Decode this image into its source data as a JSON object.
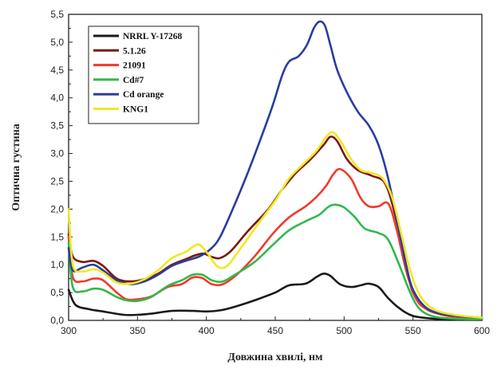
{
  "chart_data": {
    "type": "line",
    "xlabel": "Довжина хвилі, нм",
    "ylabel": "Оптична густина",
    "xlim": [
      300,
      600
    ],
    "ylim": [
      0,
      5.5
    ],
    "x_ticks": [
      300,
      350,
      400,
      450,
      500,
      550,
      600
    ],
    "y_ticks": [
      0,
      0.5,
      1,
      1.5,
      2,
      2.5,
      3,
      3.5,
      4,
      4.5,
      5,
      5.5
    ],
    "x_tick_labels": [
      "300",
      "350",
      "400",
      "450",
      "500",
      "550",
      "600"
    ],
    "y_tick_labels": [
      "0,0",
      "0,5",
      "1,0",
      "1,5",
      "2,0",
      "2,5",
      "3,0",
      "3,5",
      "4,0",
      "4,5",
      "5,0",
      "5,5"
    ],
    "legend_position": "top-left",
    "series": [
      {
        "name": "NRRL Y-17268",
        "color": "#1a1a1a",
        "points": [
          [
            300,
            0.55
          ],
          [
            305,
            0.28
          ],
          [
            315,
            0.2
          ],
          [
            325,
            0.16
          ],
          [
            340,
            0.1
          ],
          [
            350,
            0.1
          ],
          [
            360,
            0.12
          ],
          [
            375,
            0.17
          ],
          [
            390,
            0.17
          ],
          [
            400,
            0.16
          ],
          [
            410,
            0.18
          ],
          [
            420,
            0.24
          ],
          [
            435,
            0.36
          ],
          [
            450,
            0.5
          ],
          [
            460,
            0.63
          ],
          [
            472,
            0.66
          ],
          [
            480,
            0.78
          ],
          [
            485,
            0.84
          ],
          [
            490,
            0.8
          ],
          [
            497,
            0.65
          ],
          [
            505,
            0.6
          ],
          [
            512,
            0.63
          ],
          [
            518,
            0.66
          ],
          [
            525,
            0.6
          ],
          [
            532,
            0.4
          ],
          [
            540,
            0.22
          ],
          [
            550,
            0.08
          ],
          [
            565,
            0.03
          ],
          [
            580,
            0.02
          ],
          [
            600,
            0.01
          ]
        ]
      },
      {
        "name": "5.1.26",
        "color": "#7a1a10",
        "points": [
          [
            300,
            1.55
          ],
          [
            303,
            1.15
          ],
          [
            310,
            1.05
          ],
          [
            318,
            1.07
          ],
          [
            325,
            0.98
          ],
          [
            335,
            0.75
          ],
          [
            345,
            0.7
          ],
          [
            355,
            0.74
          ],
          [
            365,
            0.84
          ],
          [
            375,
            1.0
          ],
          [
            385,
            1.1
          ],
          [
            392,
            1.17
          ],
          [
            398,
            1.2
          ],
          [
            404,
            1.14
          ],
          [
            410,
            1.12
          ],
          [
            418,
            1.25
          ],
          [
            430,
            1.6
          ],
          [
            445,
            2.0
          ],
          [
            455,
            2.35
          ],
          [
            465,
            2.65
          ],
          [
            475,
            2.88
          ],
          [
            485,
            3.15
          ],
          [
            490,
            3.3
          ],
          [
            495,
            3.22
          ],
          [
            502,
            2.9
          ],
          [
            510,
            2.7
          ],
          [
            520,
            2.6
          ],
          [
            530,
            2.45
          ],
          [
            538,
            1.8
          ],
          [
            545,
            1.0
          ],
          [
            550,
            0.5
          ],
          [
            560,
            0.2
          ],
          [
            575,
            0.1
          ],
          [
            600,
            0.04
          ]
        ]
      },
      {
        "name": "21091",
        "color": "#ee3b2c",
        "points": [
          [
            300,
            1.5
          ],
          [
            303,
            0.78
          ],
          [
            310,
            0.7
          ],
          [
            318,
            0.75
          ],
          [
            325,
            0.72
          ],
          [
            335,
            0.5
          ],
          [
            342,
            0.38
          ],
          [
            350,
            0.38
          ],
          [
            360,
            0.43
          ],
          [
            372,
            0.6
          ],
          [
            382,
            0.65
          ],
          [
            390,
            0.77
          ],
          [
            397,
            0.76
          ],
          [
            404,
            0.65
          ],
          [
            412,
            0.65
          ],
          [
            422,
            0.82
          ],
          [
            435,
            1.15
          ],
          [
            448,
            1.55
          ],
          [
            460,
            1.85
          ],
          [
            472,
            2.05
          ],
          [
            480,
            2.22
          ],
          [
            487,
            2.42
          ],
          [
            492,
            2.62
          ],
          [
            497,
            2.72
          ],
          [
            505,
            2.55
          ],
          [
            512,
            2.2
          ],
          [
            518,
            2.05
          ],
          [
            525,
            2.05
          ],
          [
            532,
            2.1
          ],
          [
            538,
            1.65
          ],
          [
            545,
            0.9
          ],
          [
            552,
            0.4
          ],
          [
            560,
            0.2
          ],
          [
            575,
            0.08
          ],
          [
            600,
            0.03
          ]
        ]
      },
      {
        "name": "Cd#7",
        "color": "#32b84a",
        "points": [
          [
            300,
            1.4
          ],
          [
            303,
            0.6
          ],
          [
            310,
            0.52
          ],
          [
            318,
            0.57
          ],
          [
            325,
            0.55
          ],
          [
            335,
            0.42
          ],
          [
            342,
            0.36
          ],
          [
            350,
            0.35
          ],
          [
            360,
            0.42
          ],
          [
            372,
            0.62
          ],
          [
            382,
            0.72
          ],
          [
            390,
            0.82
          ],
          [
            397,
            0.82
          ],
          [
            404,
            0.72
          ],
          [
            412,
            0.7
          ],
          [
            422,
            0.84
          ],
          [
            435,
            1.05
          ],
          [
            448,
            1.35
          ],
          [
            460,
            1.62
          ],
          [
            472,
            1.78
          ],
          [
            482,
            1.9
          ],
          [
            488,
            2.03
          ],
          [
            493,
            2.08
          ],
          [
            500,
            2.03
          ],
          [
            508,
            1.85
          ],
          [
            515,
            1.65
          ],
          [
            525,
            1.57
          ],
          [
            532,
            1.45
          ],
          [
            540,
            1.0
          ],
          [
            548,
            0.5
          ],
          [
            555,
            0.2
          ],
          [
            565,
            0.07
          ],
          [
            580,
            0.03
          ],
          [
            600,
            0.02
          ]
        ]
      },
      {
        "name": "Cd orange",
        "color": "#2a3d9e",
        "points": [
          [
            300,
            1.3
          ],
          [
            303,
            0.9
          ],
          [
            310,
            0.95
          ],
          [
            318,
            1.0
          ],
          [
            325,
            0.9
          ],
          [
            335,
            0.72
          ],
          [
            345,
            0.65
          ],
          [
            355,
            0.7
          ],
          [
            365,
            0.82
          ],
          [
            375,
            0.98
          ],
          [
            385,
            1.07
          ],
          [
            395,
            1.15
          ],
          [
            403,
            1.28
          ],
          [
            410,
            1.5
          ],
          [
            420,
            2.05
          ],
          [
            430,
            2.65
          ],
          [
            440,
            3.3
          ],
          [
            448,
            3.85
          ],
          [
            455,
            4.4
          ],
          [
            460,
            4.65
          ],
          [
            467,
            4.75
          ],
          [
            473,
            4.95
          ],
          [
            478,
            5.25
          ],
          [
            482,
            5.37
          ],
          [
            486,
            5.3
          ],
          [
            490,
            4.95
          ],
          [
            495,
            4.5
          ],
          [
            502,
            4.1
          ],
          [
            510,
            3.75
          ],
          [
            518,
            3.5
          ],
          [
            525,
            3.15
          ],
          [
            532,
            2.55
          ],
          [
            540,
            1.6
          ],
          [
            545,
            1.0
          ],
          [
            550,
            0.55
          ],
          [
            560,
            0.22
          ],
          [
            575,
            0.1
          ],
          [
            600,
            0.05
          ]
        ]
      },
      {
        "name": "KNG1",
        "color": "#f0e822",
        "points": [
          [
            300,
            2.0
          ],
          [
            303,
            1.0
          ],
          [
            310,
            0.88
          ],
          [
            318,
            0.92
          ],
          [
            325,
            0.86
          ],
          [
            335,
            0.68
          ],
          [
            345,
            0.66
          ],
          [
            355,
            0.74
          ],
          [
            365,
            0.9
          ],
          [
            375,
            1.12
          ],
          [
            385,
            1.23
          ],
          [
            390,
            1.32
          ],
          [
            395,
            1.36
          ],
          [
            401,
            1.2
          ],
          [
            408,
            0.97
          ],
          [
            415,
            0.98
          ],
          [
            425,
            1.3
          ],
          [
            438,
            1.75
          ],
          [
            450,
            2.15
          ],
          [
            460,
            2.55
          ],
          [
            470,
            2.8
          ],
          [
            480,
            3.05
          ],
          [
            487,
            3.3
          ],
          [
            492,
            3.38
          ],
          [
            498,
            3.2
          ],
          [
            505,
            2.9
          ],
          [
            512,
            2.7
          ],
          [
            520,
            2.65
          ],
          [
            528,
            2.55
          ],
          [
            535,
            2.2
          ],
          [
            542,
            1.5
          ],
          [
            548,
            0.9
          ],
          [
            555,
            0.45
          ],
          [
            565,
            0.2
          ],
          [
            580,
            0.1
          ],
          [
            600,
            0.05
          ]
        ]
      }
    ]
  }
}
